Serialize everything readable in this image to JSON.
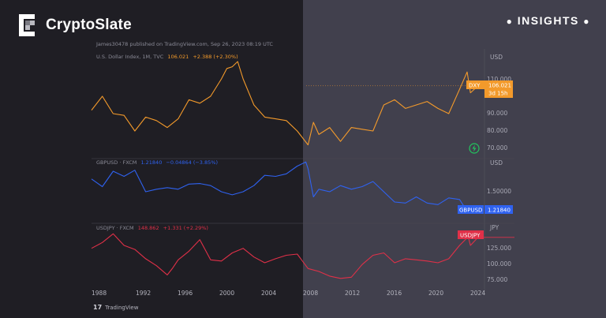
{
  "brand": {
    "name": "CryptoSlate",
    "tag": "INSIGHTS"
  },
  "publish_note": "James30478 published on TradingView.com, Sep 26, 2023 08:19 UTC",
  "footer": {
    "tv_logo": "17",
    "tv_name": "TradingView"
  },
  "colors": {
    "dxy": "#f39a2b",
    "gbpusd": "#2f62f0",
    "usdjpy": "#e03048",
    "accent": "#ffffff"
  },
  "chart_data": [
    {
      "type": "line",
      "title": "U.S. Dollar Index, 1M, TVC",
      "header_values": [
        "106.021",
        "+2.388 (+2.30%)"
      ],
      "unit": "USD",
      "series": [
        {
          "name": "DXY",
          "x": [
            1988,
            1989,
            1990,
            1991,
            1992,
            1993,
            1994,
            1995,
            1996,
            1997,
            1998,
            1999,
            2000,
            2000.5,
            2001,
            2001.5,
            2002,
            2003,
            2004,
            2005,
            2006,
            2007,
            2008,
            2008.5,
            2009,
            2010,
            2011,
            2012,
            2013,
            2014,
            2015,
            2016,
            2017,
            2018,
            2019,
            2020,
            2021,
            2022,
            2022.7,
            2023,
            2023.7
          ],
          "y": [
            92,
            100,
            90,
            89,
            80,
            88,
            86,
            82,
            87,
            98,
            96,
            100,
            110,
            116,
            117,
            120,
            110,
            95,
            88,
            87,
            86,
            80,
            72,
            85,
            78,
            82,
            74,
            82,
            81,
            80,
            95,
            98,
            93,
            95,
            97,
            93,
            90,
            104,
            114,
            102,
            106
          ]
        }
      ],
      "y_ticks": [
        "110.000",
        "90.000",
        "80.000",
        "70.000"
      ],
      "last_label": "DXY",
      "last_value": "106.021",
      "countdown": "3d 15h"
    },
    {
      "type": "line",
      "title": "GBPUSD · FXCM",
      "header_values": [
        "1.21840",
        "−0.04864 (−3.85%)"
      ],
      "unit": "USD",
      "series": [
        {
          "name": "GBPUSD",
          "x": [
            1988,
            1989,
            1990,
            1991,
            1992,
            1993,
            1994,
            1995,
            1996,
            1997,
            1998,
            1999,
            2000,
            2001,
            2002,
            2003,
            2004,
            2005,
            2006,
            2007,
            2007.8,
            2008,
            2008.5,
            2009,
            2010,
            2011,
            2012,
            2013,
            2014,
            2015,
            2016,
            2017,
            2018,
            2019,
            2020,
            2021,
            2022,
            2022.7,
            2023,
            2023.7
          ],
          "y": [
            1.75,
            1.6,
            1.9,
            1.8,
            1.92,
            1.5,
            1.55,
            1.58,
            1.55,
            1.65,
            1.66,
            1.62,
            1.5,
            1.44,
            1.5,
            1.62,
            1.82,
            1.8,
            1.85,
            2.0,
            2.08,
            1.95,
            1.4,
            1.55,
            1.5,
            1.62,
            1.55,
            1.6,
            1.7,
            1.5,
            1.3,
            1.28,
            1.4,
            1.28,
            1.25,
            1.38,
            1.35,
            1.12,
            1.2,
            1.218
          ]
        }
      ],
      "y_ticks": [
        "1.50000"
      ],
      "last_label": "GBPUSD",
      "last_value": "1.21840"
    },
    {
      "type": "line",
      "title": "USDJPY · FXCM",
      "header_values": [
        "148.862",
        "+1.331 (+2.29%)"
      ],
      "unit": "JPY",
      "series": [
        {
          "name": "USDJPY",
          "x": [
            1988,
            1989,
            1990,
            1991,
            1992,
            1993,
            1994,
            1995,
            1995.5,
            1996,
            1997,
            1998,
            1999,
            2000,
            2001,
            2002,
            2003,
            2004,
            2005,
            2006,
            2007,
            2008,
            2009,
            2010,
            2011,
            2012,
            2013,
            2014,
            2015,
            2016,
            2017,
            2018,
            2019,
            2020,
            2021,
            2022,
            2022.8,
            2023,
            2023.7
          ],
          "y": [
            130,
            140,
            155,
            135,
            128,
            112,
            100,
            84,
            96,
            110,
            125,
            145,
            110,
            108,
            122,
            130,
            115,
            105,
            112,
            118,
            120,
            95,
            90,
            82,
            78,
            80,
            102,
            118,
            122,
            105,
            112,
            110,
            108,
            105,
            112,
            135,
            150,
            135,
            148.862
          ]
        }
      ],
      "y_ticks": [
        "125.000",
        "100.000",
        "75.000"
      ],
      "last_label": "USDJPY"
    }
  ],
  "x_ticks": [
    "1988",
    "1992",
    "1996",
    "2000",
    "2004",
    "2008",
    "2012",
    "2016",
    "2020",
    "2024"
  ]
}
